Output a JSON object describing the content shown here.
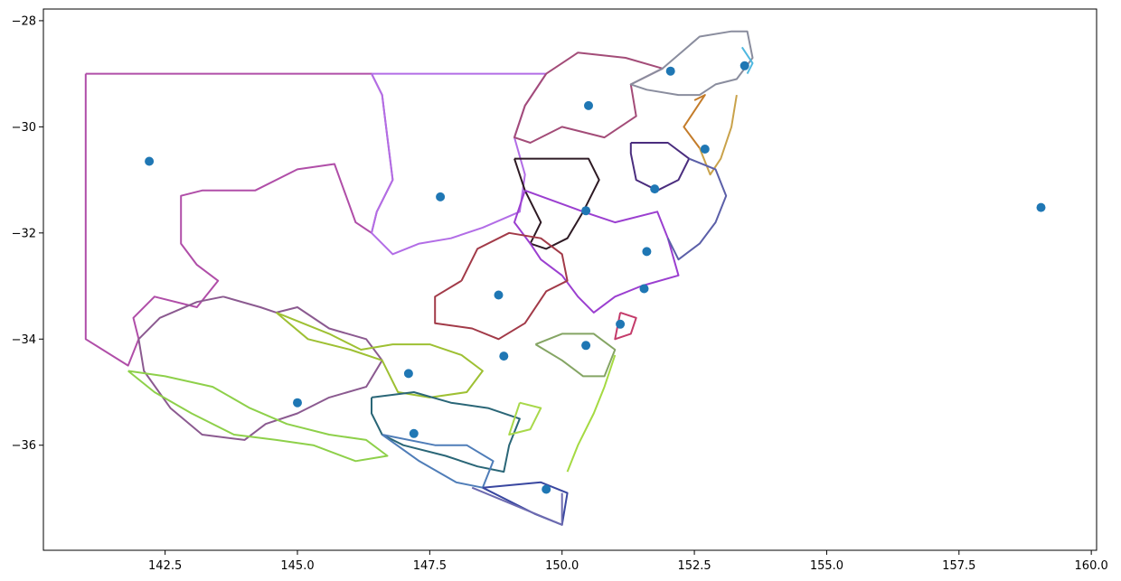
{
  "chart_data": {
    "type": "scatter",
    "title": "",
    "xlabel": "",
    "ylabel": "",
    "xlim": [
      140.2,
      160.1
    ],
    "ylim": [
      -37.98,
      -27.78
    ],
    "xticks": [
      142.5,
      145.0,
      147.5,
      150.0,
      152.5,
      155.0,
      157.5,
      160.0
    ],
    "xtick_labels": [
      "142.5",
      "145.0",
      "147.5",
      "150.0",
      "152.5",
      "155.0",
      "157.5",
      "160.0"
    ],
    "yticks": [
      -28,
      -30,
      -32,
      -34,
      -36
    ],
    "ytick_labels": [
      "−28",
      "−30",
      "−32",
      "−34",
      "−36"
    ],
    "grid": false,
    "point_color": "#1f77b4",
    "points": [
      {
        "x": 142.2,
        "y": -30.65
      },
      {
        "x": 145.0,
        "y": -35.2
      },
      {
        "x": 147.1,
        "y": -34.65
      },
      {
        "x": 147.2,
        "y": -35.78
      },
      {
        "x": 147.7,
        "y": -31.32
      },
      {
        "x": 148.8,
        "y": -33.17
      },
      {
        "x": 148.9,
        "y": -34.32
      },
      {
        "x": 149.7,
        "y": -36.83
      },
      {
        "x": 150.45,
        "y": -31.58
      },
      {
        "x": 150.45,
        "y": -34.12
      },
      {
        "x": 150.5,
        "y": -29.6
      },
      {
        "x": 151.1,
        "y": -33.72
      },
      {
        "x": 151.55,
        "y": -33.05
      },
      {
        "x": 151.6,
        "y": -32.35
      },
      {
        "x": 151.75,
        "y": -31.17
      },
      {
        "x": 152.05,
        "y": -28.95
      },
      {
        "x": 152.7,
        "y": -30.42
      },
      {
        "x": 153.45,
        "y": -28.85
      },
      {
        "x": 159.05,
        "y": -31.52
      }
    ],
    "regions": [
      {
        "color": "#b04ea8",
        "points": [
          [
            141.0,
            -29.0
          ],
          [
            146.4,
            -29.0
          ],
          [
            146.6,
            -29.4
          ],
          [
            146.7,
            -30.2
          ],
          [
            146.8,
            -31.0
          ],
          [
            146.5,
            -31.6
          ],
          [
            146.4,
            -32.0
          ],
          [
            146.1,
            -31.8
          ],
          [
            145.7,
            -30.7
          ],
          [
            145.0,
            -30.8
          ],
          [
            144.2,
            -31.2
          ],
          [
            143.2,
            -31.2
          ],
          [
            142.8,
            -31.3
          ],
          [
            142.8,
            -32.2
          ],
          [
            143.1,
            -32.6
          ],
          [
            143.5,
            -32.9
          ],
          [
            143.1,
            -33.4
          ],
          [
            142.3,
            -33.2
          ],
          [
            141.9,
            -33.6
          ],
          [
            142.0,
            -34.0
          ],
          [
            141.8,
            -34.5
          ],
          [
            141.0,
            -34.0
          ],
          [
            141.0,
            -29.0
          ]
        ]
      },
      {
        "color": "#b26de6",
        "points": [
          [
            146.4,
            -29.0
          ],
          [
            149.7,
            -29.0
          ],
          [
            149.3,
            -29.6
          ],
          [
            149.1,
            -30.2
          ],
          [
            149.3,
            -30.9
          ],
          [
            149.2,
            -31.6
          ],
          [
            148.5,
            -31.9
          ],
          [
            147.9,
            -32.1
          ],
          [
            147.3,
            -32.2
          ],
          [
            146.8,
            -32.4
          ],
          [
            146.4,
            -32.0
          ],
          [
            146.5,
            -31.6
          ],
          [
            146.8,
            -31.0
          ],
          [
            146.7,
            -30.2
          ],
          [
            146.6,
            -29.4
          ],
          [
            146.4,
            -29.0
          ]
        ]
      },
      {
        "color": "#a34c78",
        "points": [
          [
            149.7,
            -29.0
          ],
          [
            150.3,
            -28.6
          ],
          [
            151.2,
            -28.7
          ],
          [
            151.9,
            -28.9
          ],
          [
            151.3,
            -29.2
          ],
          [
            151.4,
            -29.8
          ],
          [
            150.8,
            -30.2
          ],
          [
            150.0,
            -30.0
          ],
          [
            149.4,
            -30.3
          ],
          [
            149.1,
            -30.2
          ],
          [
            149.3,
            -29.6
          ],
          [
            149.7,
            -29.0
          ]
        ]
      },
      {
        "color": "#2e1a24",
        "points": [
          [
            149.1,
            -30.6
          ],
          [
            150.5,
            -30.6
          ],
          [
            150.7,
            -31.0
          ],
          [
            150.4,
            -31.6
          ],
          [
            150.1,
            -32.1
          ],
          [
            149.7,
            -32.3
          ],
          [
            149.4,
            -32.2
          ],
          [
            149.6,
            -31.8
          ],
          [
            149.3,
            -31.2
          ],
          [
            149.1,
            -30.6
          ]
        ]
      },
      {
        "color": "#9b3fd0",
        "points": [
          [
            149.3,
            -31.2
          ],
          [
            150.4,
            -31.6
          ],
          [
            151.0,
            -31.8
          ],
          [
            151.8,
            -31.6
          ],
          [
            152.0,
            -32.1
          ],
          [
            152.2,
            -32.8
          ],
          [
            151.5,
            -33.0
          ],
          [
            151.0,
            -33.2
          ],
          [
            150.6,
            -33.5
          ],
          [
            150.3,
            -33.2
          ],
          [
            150.0,
            -32.8
          ],
          [
            149.6,
            -32.5
          ],
          [
            149.4,
            -32.2
          ],
          [
            149.1,
            -31.8
          ],
          [
            149.3,
            -31.2
          ]
        ]
      },
      {
        "color": "#a23a48",
        "points": [
          [
            148.1,
            -32.9
          ],
          [
            148.4,
            -32.3
          ],
          [
            149.0,
            -32.0
          ],
          [
            149.6,
            -32.1
          ],
          [
            150.0,
            -32.4
          ],
          [
            150.1,
            -32.9
          ],
          [
            149.7,
            -33.1
          ],
          [
            149.3,
            -33.7
          ],
          [
            148.8,
            -34.0
          ],
          [
            148.3,
            -33.8
          ],
          [
            147.6,
            -33.7
          ],
          [
            147.6,
            -33.2
          ],
          [
            148.1,
            -32.9
          ]
        ]
      },
      {
        "color": "#8b5a90",
        "points": [
          [
            143.6,
            -33.2
          ],
          [
            144.3,
            -33.4
          ],
          [
            144.6,
            -33.5
          ],
          [
            145.0,
            -33.4
          ],
          [
            145.6,
            -33.8
          ],
          [
            146.3,
            -34.0
          ],
          [
            146.6,
            -34.4
          ],
          [
            146.3,
            -34.9
          ],
          [
            145.6,
            -35.1
          ],
          [
            145.0,
            -35.4
          ],
          [
            144.4,
            -35.6
          ],
          [
            144.0,
            -35.9
          ],
          [
            143.2,
            -35.8
          ],
          [
            142.6,
            -35.3
          ],
          [
            142.1,
            -34.6
          ],
          [
            142.0,
            -34.0
          ],
          [
            142.4,
            -33.6
          ],
          [
            143.1,
            -33.3
          ],
          [
            143.6,
            -33.2
          ]
        ]
      },
      {
        "color": "#9ec033",
        "points": [
          [
            144.6,
            -33.5
          ],
          [
            145.6,
            -33.9
          ],
          [
            146.2,
            -34.2
          ],
          [
            146.8,
            -34.1
          ],
          [
            147.5,
            -34.1
          ],
          [
            148.1,
            -34.3
          ],
          [
            148.5,
            -34.6
          ],
          [
            148.2,
            -35.0
          ],
          [
            147.5,
            -35.1
          ],
          [
            146.9,
            -35.0
          ],
          [
            146.6,
            -34.4
          ],
          [
            146.0,
            -34.2
          ],
          [
            145.2,
            -34.0
          ],
          [
            144.6,
            -33.5
          ]
        ]
      },
      {
        "color": "#8ed04a",
        "points": [
          [
            141.8,
            -34.6
          ],
          [
            142.5,
            -34.7
          ],
          [
            143.4,
            -34.9
          ],
          [
            144.1,
            -35.3
          ],
          [
            144.8,
            -35.6
          ],
          [
            145.6,
            -35.8
          ],
          [
            146.3,
            -35.9
          ],
          [
            146.7,
            -36.2
          ],
          [
            146.1,
            -36.3
          ],
          [
            145.3,
            -36.0
          ],
          [
            144.6,
            -35.9
          ],
          [
            143.8,
            -35.8
          ],
          [
            143.0,
            -35.4
          ],
          [
            142.3,
            -35.0
          ],
          [
            141.8,
            -34.6
          ]
        ]
      },
      {
        "color": "#2a6677",
        "points": [
          [
            146.4,
            -35.1
          ],
          [
            147.2,
            -35.0
          ],
          [
            147.9,
            -35.2
          ],
          [
            148.6,
            -35.3
          ],
          [
            149.2,
            -35.5
          ],
          [
            149.0,
            -36.0
          ],
          [
            148.9,
            -36.5
          ],
          [
            148.4,
            -36.4
          ],
          [
            147.8,
            -36.2
          ],
          [
            147.0,
            -36.0
          ],
          [
            146.6,
            -35.8
          ],
          [
            146.4,
            -35.4
          ],
          [
            146.4,
            -35.1
          ]
        ]
      },
      {
        "color": "#4f7db8",
        "points": [
          [
            146.6,
            -35.8
          ],
          [
            147.6,
            -36.0
          ],
          [
            148.2,
            -36.0
          ],
          [
            148.7,
            -36.3
          ],
          [
            148.5,
            -36.8
          ],
          [
            148.0,
            -36.7
          ],
          [
            147.3,
            -36.3
          ],
          [
            146.6,
            -35.8
          ]
        ]
      },
      {
        "color": "#a8d84a",
        "points": [
          [
            149.2,
            -35.2
          ],
          [
            149.6,
            -35.3
          ],
          [
            149.4,
            -35.7
          ],
          [
            149.0,
            -35.8
          ],
          [
            149.2,
            -35.2
          ]
        ]
      },
      {
        "color": "#3947a0",
        "points": [
          [
            148.5,
            -36.8
          ],
          [
            149.6,
            -36.7
          ],
          [
            150.1,
            -36.9
          ],
          [
            150.0,
            -37.5
          ],
          [
            149.5,
            -37.3
          ],
          [
            148.5,
            -36.8
          ]
        ]
      },
      {
        "color": "#6d6bb0",
        "points": [
          [
            148.3,
            -36.8
          ],
          [
            150.0,
            -37.5
          ],
          [
            150.0,
            -36.9
          ]
        ]
      },
      {
        "color": "#85a564",
        "points": [
          [
            149.5,
            -34.1
          ],
          [
            150.0,
            -33.9
          ],
          [
            150.6,
            -33.9
          ],
          [
            151.0,
            -34.2
          ],
          [
            150.8,
            -34.7
          ],
          [
            150.4,
            -34.7
          ],
          [
            150.0,
            -34.4
          ],
          [
            149.5,
            -34.1
          ]
        ]
      },
      {
        "color": "#a5da42",
        "points": [
          [
            151.0,
            -34.3
          ],
          [
            150.8,
            -34.9
          ],
          [
            150.6,
            -35.4
          ],
          [
            150.3,
            -36.0
          ],
          [
            150.1,
            -36.5
          ]
        ]
      },
      {
        "color": "#8a8d9e",
        "points": [
          [
            151.9,
            -28.9
          ],
          [
            152.6,
            -28.3
          ],
          [
            153.2,
            -28.2
          ],
          [
            153.5,
            -28.2
          ],
          [
            153.6,
            -28.7
          ],
          [
            153.3,
            -29.1
          ],
          [
            152.9,
            -29.2
          ],
          [
            152.6,
            -29.4
          ],
          [
            152.2,
            -29.4
          ],
          [
            151.6,
            -29.3
          ],
          [
            151.3,
            -29.2
          ],
          [
            151.9,
            -28.9
          ]
        ]
      },
      {
        "color": "#c47c2a",
        "points": [
          [
            152.5,
            -29.5
          ],
          [
            152.7,
            -29.4
          ],
          [
            152.3,
            -30.0
          ],
          [
            152.6,
            -30.4
          ]
        ]
      },
      {
        "color": "#c9a24a",
        "points": [
          [
            153.3,
            -29.4
          ],
          [
            153.2,
            -30.0
          ],
          [
            153.0,
            -30.6
          ],
          [
            152.8,
            -30.9
          ],
          [
            152.6,
            -30.4
          ]
        ]
      },
      {
        "color": "#4a2d7e",
        "points": [
          [
            151.3,
            -30.3
          ],
          [
            152.0,
            -30.3
          ],
          [
            152.4,
            -30.6
          ],
          [
            152.2,
            -31.0
          ],
          [
            151.8,
            -31.2
          ],
          [
            151.4,
            -31.0
          ],
          [
            151.3,
            -30.5
          ],
          [
            151.3,
            -30.3
          ]
        ]
      },
      {
        "color": "#5b5fa8",
        "points": [
          [
            152.4,
            -30.6
          ],
          [
            152.9,
            -30.8
          ],
          [
            153.1,
            -31.3
          ],
          [
            152.9,
            -31.8
          ],
          [
            152.6,
            -32.2
          ],
          [
            152.2,
            -32.5
          ],
          [
            152.0,
            -32.1
          ]
        ]
      },
      {
        "color": "#c43b6a",
        "points": [
          [
            151.1,
            -33.5
          ],
          [
            151.4,
            -33.6
          ],
          [
            151.3,
            -33.9
          ],
          [
            151.0,
            -34.0
          ],
          [
            151.1,
            -33.5
          ]
        ]
      },
      {
        "color": "#4fb8e0",
        "points": [
          [
            153.4,
            -28.5
          ],
          [
            153.6,
            -28.8
          ],
          [
            153.5,
            -29.0
          ]
        ]
      },
      {
        "color": "#c0359e",
        "points": [
          [
            159.05,
            -31.45
          ],
          [
            159.1,
            -31.55
          ]
        ]
      }
    ]
  }
}
